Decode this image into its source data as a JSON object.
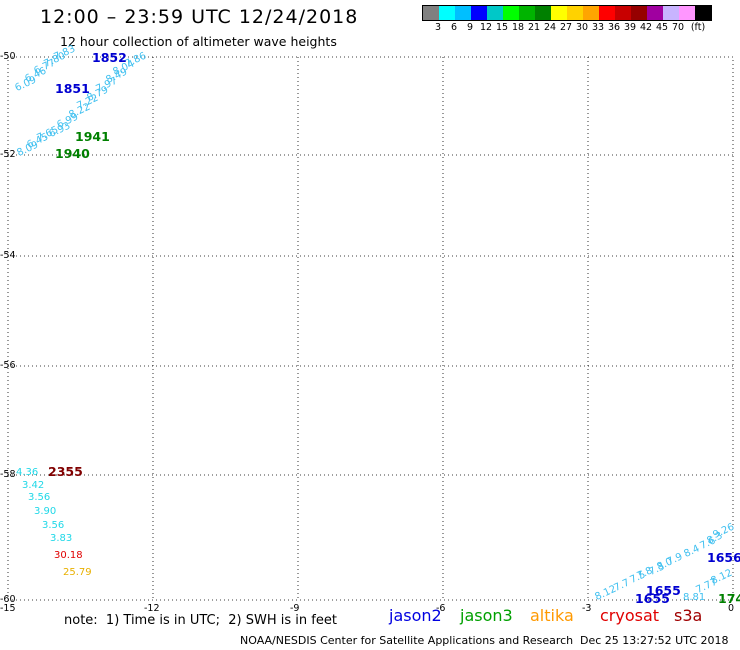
{
  "header": {
    "title": "12:00 – 23:59 UTC 12/24/2018",
    "subtitle": "12 hour collection of altimeter wave heights"
  },
  "legend": {
    "colors": [
      "#808080",
      "#00ffff",
      "#00bfff",
      "#0000ff",
      "#00c8c8",
      "#00ff00",
      "#00b400",
      "#008000",
      "#ffff00",
      "#ffd200",
      "#ffa500",
      "#ff0000",
      "#c80000",
      "#960000",
      "#a000a0",
      "#c8b4ff",
      "#ff96ff",
      "#000000"
    ],
    "labels": [
      "3",
      "6",
      "9",
      "12",
      "15",
      "18",
      "21",
      "24",
      "27",
      "30",
      "33",
      "36",
      "39",
      "42",
      "45",
      "70",
      "(ft)"
    ]
  },
  "axes": {
    "y_ticks": [
      "-50",
      "-52",
      "-54",
      "-56",
      "-58",
      "-60"
    ],
    "x_ticks": [
      "-15",
      "-12",
      "-9",
      "-6",
      "-3",
      "0"
    ]
  },
  "observations": [
    {
      "text": "7.83",
      "color": "#40c0f0"
    },
    {
      "text": "7.86",
      "color": "#40c0f0"
    },
    {
      "text": "7.80",
      "color": "#40c0f0"
    },
    {
      "text": "8.04",
      "color": "#40c0f0"
    },
    {
      "text": "6.77",
      "color": "#40c0f0"
    },
    {
      "text": "8.49",
      "color": "#40c0f0"
    },
    {
      "text": "6.46",
      "color": "#40c0f0"
    },
    {
      "text": "7.97",
      "color": "#40c0f0"
    },
    {
      "text": "6.09",
      "color": "#40c0f0"
    },
    {
      "text": "8.79",
      "color": "#40c0f0"
    },
    {
      "text": "7.22",
      "color": "#40c0f0"
    },
    {
      "text": "8.22",
      "color": "#40c0f0"
    },
    {
      "text": "6.99",
      "color": "#40c0f0"
    },
    {
      "text": "6.93",
      "color": "#40c0f0"
    },
    {
      "text": "7.65",
      "color": "#40c0f0"
    },
    {
      "text": "6.45",
      "color": "#40c0f0"
    },
    {
      "text": "8.09",
      "color": "#40c0f0"
    },
    {
      "text": "4.36",
      "color": "#20d8e8"
    },
    {
      "text": "3.42",
      "color": "#20d8e8"
    },
    {
      "text": "3.56",
      "color": "#20d8e8"
    },
    {
      "text": "3.90",
      "color": "#20d8e8"
    },
    {
      "text": "3.56",
      "color": "#20d8e8"
    },
    {
      "text": "3.83",
      "color": "#20d8e8"
    },
    {
      "text": "30.18",
      "color": "#e00000"
    },
    {
      "text": "25.79",
      "color": "#e8b000"
    },
    {
      "text": "9.26",
      "color": "#40c0f0"
    },
    {
      "text": "8.12",
      "color": "#40c0f0"
    },
    {
      "text": "7.77",
      "color": "#40c0f0"
    },
    {
      "text": "8.81",
      "color": "#40c0f0"
    },
    {
      "text": "8.12",
      "color": "#40c0f0"
    },
    {
      "text": "7.7",
      "color": "#40c0f0"
    },
    {
      "text": "7.5",
      "color": "#40c0f0"
    },
    {
      "text": "7.3",
      "color": "#40c0f0"
    },
    {
      "text": "7.9",
      "color": "#40c0f0"
    },
    {
      "text": "8.4",
      "color": "#40c0f0"
    },
    {
      "text": "7.6",
      "color": "#40c0f0"
    },
    {
      "text": "8.0",
      "color": "#40c0f0"
    },
    {
      "text": "7.8",
      "color": "#40c0f0"
    },
    {
      "text": "8.3",
      "color": "#40c0f0"
    }
  ],
  "passes": [
    {
      "text": "1852",
      "color": "#0000d0"
    },
    {
      "text": "1851",
      "color": "#0000d0"
    },
    {
      "text": "1941",
      "color": "#008000"
    },
    {
      "text": "1940",
      "color": "#008000"
    },
    {
      "text": "2355",
      "color": "#800000"
    },
    {
      "text": "1656",
      "color": "#0000d0"
    },
    {
      "text": "1655",
      "color": "#0000d0"
    },
    {
      "text": "1655",
      "color": "#0000d0"
    },
    {
      "text": "174",
      "color": "#008000"
    }
  ],
  "footer": {
    "note": "note:  1) Time is in UTC;  2) SWH is in feet",
    "satellites": [
      {
        "name": "jason2",
        "color": "#0000e0"
      },
      {
        "name": "jason3",
        "color": "#00a000"
      },
      {
        "name": "altika",
        "color": "#ff9900"
      },
      {
        "name": "cryosat",
        "color": "#e00000"
      },
      {
        "name": "s3a",
        "color": "#a00000"
      }
    ],
    "credit": "NOAA/NESDIS Center for Satellite Applications and Research",
    "timestamp": "Dec 25 13:27:52 UTC 2018"
  }
}
